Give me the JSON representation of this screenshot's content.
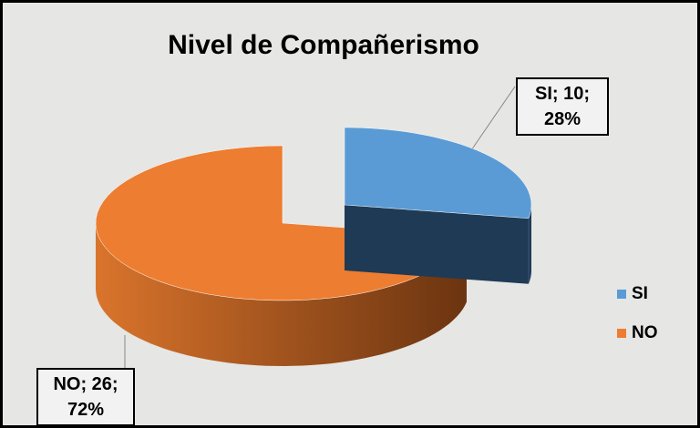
{
  "chart_data": {
    "type": "pie",
    "title": "Nivel de Compañerismo",
    "categories": [
      "SI",
      "NO"
    ],
    "values": [
      10,
      26
    ],
    "value_labels": [
      "SI; 10; 28%",
      "NO; 26; 72%"
    ],
    "colors": [
      "#5b9bd5",
      "#ed7d31"
    ],
    "legend": "right"
  }
}
